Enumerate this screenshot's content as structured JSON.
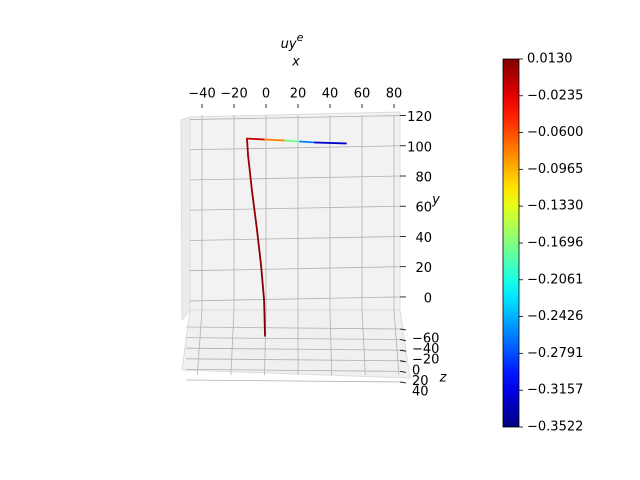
{
  "chart_data": {
    "type": "line3d",
    "title": {
      "text": "uy",
      "superscript": "e"
    },
    "xlabel": "x",
    "ylabel": "y",
    "zlabel": "z",
    "xlim": [
      -47.5,
      83.75
    ],
    "xticks": [
      {
        "value": -40,
        "label": "−40"
      },
      {
        "value": -20,
        "label": "−20"
      },
      0,
      20,
      40,
      60,
      80
    ],
    "ylim": [
      -6,
      125
    ],
    "yticks": [
      0,
      20,
      40,
      60,
      80,
      100,
      120
    ],
    "zlim": [
      -60,
      40
    ],
    "zticks": [
      {
        "value": -60,
        "label": "−60"
      },
      {
        "value": -40,
        "label": "−40"
      },
      {
        "value": -20,
        "label": "−20"
      },
      0,
      20,
      40
    ],
    "grid": true,
    "colormap": "jet",
    "line": {
      "x": [
        -0.6,
        -1.2,
        -3.1,
        -5.6,
        -8.8,
        -11.2,
        -11.9,
        -0.6,
        11.9,
        21.2,
        30.6,
        50
      ],
      "y": [
        -23.1,
        0.7,
        23.7,
        46.8,
        73.2,
        96.2,
        107.4,
        106.8,
        106.1,
        105.5,
        104.8,
        104.2
      ],
      "uy": [
        0.013,
        0.012,
        0.01,
        0.008,
        0.005,
        0.002,
        0.0,
        -0.03,
        -0.13,
        -0.22,
        -0.3,
        -0.3522
      ]
    },
    "colorbar": {
      "clim": [
        -0.3522,
        0.013
      ],
      "ticks": [
        {
          "value": 0.013,
          "label": "0.0130"
        },
        {
          "value": -0.0235,
          "label": "−0.0235"
        },
        {
          "value": -0.06,
          "label": "−0.0600"
        },
        {
          "value": -0.0965,
          "label": "−0.0965"
        },
        {
          "value": -0.133,
          "label": "−0.1330"
        },
        {
          "value": -0.1696,
          "label": "−0.1696"
        },
        {
          "value": -0.2061,
          "label": "−0.2061"
        },
        {
          "value": -0.2426,
          "label": "−0.2426"
        },
        {
          "value": -0.2791,
          "label": "−0.2791"
        },
        {
          "value": -0.3157,
          "label": "−0.3157"
        },
        {
          "value": -0.3522,
          "label": "−0.3522"
        }
      ]
    }
  }
}
